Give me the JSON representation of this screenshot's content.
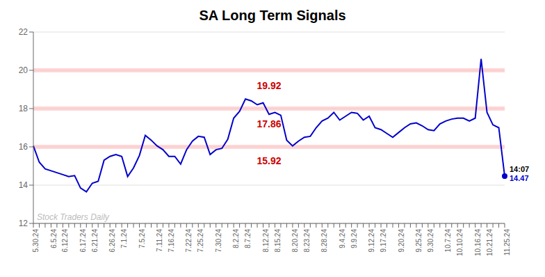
{
  "chart_data": {
    "type": "line",
    "title": "SA Long Term Signals",
    "categories": [
      "5.30.24",
      null,
      null,
      "6.5.24",
      null,
      "6.12.24",
      null,
      null,
      "6.17.24",
      null,
      "6.21.24",
      null,
      null,
      "6.26.24",
      null,
      "7.1.24",
      null,
      null,
      "7.5.24",
      null,
      null,
      "7.11.24",
      null,
      "7.16.24",
      null,
      null,
      "7.22.24",
      null,
      "7.25.24",
      null,
      null,
      "7.30.24",
      null,
      null,
      "8.2.24",
      null,
      "8.7.24",
      null,
      null,
      "8.12.24",
      null,
      "8.15.24",
      null,
      null,
      "8.20.24",
      null,
      "8.23.24",
      null,
      null,
      "8.28.24",
      null,
      null,
      "9.4.24",
      null,
      "9.9.24",
      null,
      null,
      "9.12.24",
      null,
      "9.17.24",
      null,
      null,
      "9.20.24",
      null,
      null,
      "9.25.24",
      null,
      "9.30.24",
      null,
      null,
      "10.7.24",
      null,
      "10.10.24",
      null,
      null,
      "10.16.24",
      null,
      "10.21.24",
      null,
      null,
      "11.25.24"
    ],
    "values": [
      16.05,
      15.2,
      14.85,
      14.75,
      14.65,
      14.55,
      14.45,
      14.5,
      13.85,
      13.65,
      14.1,
      14.2,
      15.3,
      15.5,
      15.6,
      15.5,
      14.45,
      14.9,
      15.55,
      16.6,
      16.35,
      16.05,
      15.85,
      15.5,
      15.5,
      15.1,
      15.85,
      16.3,
      16.55,
      16.5,
      15.6,
      15.85,
      15.92,
      16.4,
      17.5,
      17.86,
      18.5,
      18.4,
      18.2,
      18.3,
      17.7,
      17.8,
      17.65,
      16.35,
      16.05,
      16.3,
      16.5,
      16.55,
      17.0,
      17.35,
      17.5,
      17.8,
      17.4,
      17.6,
      17.8,
      17.75,
      17.4,
      17.6,
      17.0,
      16.9,
      16.7,
      16.5,
      16.75,
      17.0,
      17.2,
      17.25,
      17.1,
      16.9,
      16.85,
      17.2,
      17.35,
      17.45,
      17.5,
      17.5,
      17.35,
      17.5,
      20.6,
      17.8,
      17.15,
      17.0,
      14.47
    ],
    "color": "#0000cc",
    "ylim": [
      12,
      22
    ],
    "yticks": [
      12,
      14,
      16,
      18,
      20,
      22
    ],
    "grid": true,
    "hlines": {
      "values": [
        16,
        18,
        20
      ],
      "color": "#ffbbbb"
    },
    "annotations": [
      {
        "text": "19.92",
        "y": 19.55,
        "color": "#cc0000"
      },
      {
        "text": "17.86",
        "y": 17.56,
        "color": "#cc0000"
      },
      {
        "text": "15.92",
        "y": 15.62,
        "color": "#cc0000"
      }
    ],
    "watermark": "Stock Traders Daily",
    "endpoint": {
      "time_label": "14:07",
      "value_label": "14.47"
    }
  }
}
